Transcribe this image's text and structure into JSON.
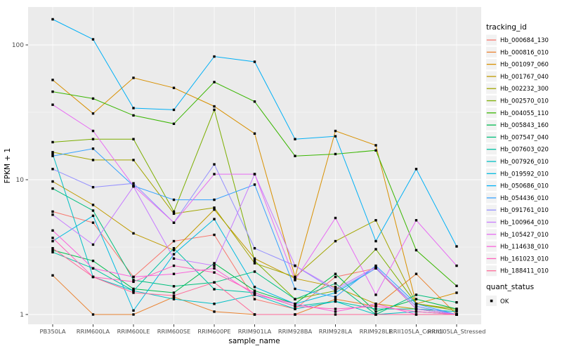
{
  "chart_data": {
    "type": "line",
    "title": "",
    "xlabel": "sample_name",
    "ylabel": "FPKM + 1",
    "scale": "log10",
    "y_ticks": [
      1,
      10,
      100
    ],
    "y_minor": [
      3.162,
      31.62
    ],
    "ylim": [
      1,
      190
    ],
    "grid": "white major and minor gridlines on gray panel",
    "panel_bg": "#EBEBEB",
    "tick_label_color": "#4D4D4D",
    "marker": "small black square",
    "categories": [
      "PB350LA",
      "RRIM600LA",
      "RRIM600LE",
      "RRIM600SE",
      "RRIM600PE",
      "RRIM901LA",
      "RRIM928BA",
      "RRIM928LA",
      "RRIM928LE",
      "RRII105LA_Control",
      "RRII105LA_Stressed"
    ],
    "legend": {
      "title": "tracking_id",
      "position": "right"
    },
    "quant_legend": {
      "title": "quant_status",
      "items": [
        "OK"
      ]
    },
    "series": [
      {
        "name": "Hb_000684_130",
        "color": "#F8766D",
        "values": [
          5.8,
          4.8,
          1.9,
          3.5,
          3.9,
          1.3,
          1.1,
          1.9,
          2.2,
          1.1,
          1.0
        ]
      },
      {
        "name": "Hb_000816_010",
        "color": "#EA8331",
        "values": [
          1.95,
          1.0,
          1.0,
          1.35,
          1.05,
          1.0,
          1.0,
          1.3,
          1.15,
          2.0,
          1.0
        ]
      },
      {
        "name": "Hb_001097_060",
        "color": "#D89000",
        "values": [
          55,
          31,
          57,
          48,
          35,
          22,
          1.9,
          23,
          18,
          1.2,
          1.45
        ]
      },
      {
        "name": "Hb_001767_040",
        "color": "#C09B00",
        "values": [
          9.7,
          6.5,
          4.0,
          3.0,
          6.0,
          2.6,
          1.85,
          1.6,
          1.2,
          1.1,
          1.0
        ]
      },
      {
        "name": "Hb_002232_300",
        "color": "#A3A500",
        "values": [
          16,
          14,
          14,
          5.6,
          6.2,
          2.4,
          1.9,
          3.5,
          5.0,
          1.2,
          1.1
        ]
      },
      {
        "name": "Hb_002570_010",
        "color": "#7CAE00",
        "values": [
          19,
          20,
          20,
          5.8,
          33,
          2.5,
          1.3,
          1.5,
          3.05,
          1.2,
          1.07
        ]
      },
      {
        "name": "Hb_004055_110",
        "color": "#39B600",
        "values": [
          45,
          40,
          30,
          26,
          53,
          38,
          15,
          15.5,
          16.5,
          3.0,
          1.63
        ]
      },
      {
        "name": "Hb_005843_160",
        "color": "#00BB4E",
        "values": [
          3.0,
          2.5,
          1.55,
          1.45,
          2.4,
          1.5,
          1.2,
          2.0,
          1.05,
          1.3,
          1.1
        ]
      },
      {
        "name": "Hb_007547_040",
        "color": "#00BF7D",
        "values": [
          8.6,
          5.9,
          1.8,
          1.62,
          1.73,
          2.08,
          1.3,
          1.7,
          1.0,
          1.4,
          1.23
        ]
      },
      {
        "name": "Hb_007603_020",
        "color": "#00C1A3",
        "values": [
          2.9,
          2.2,
          1.5,
          3.1,
          1.54,
          1.45,
          1.15,
          1.25,
          1.1,
          1.1,
          1.05
        ]
      },
      {
        "name": "Hb_007926_010",
        "color": "#00BFC4",
        "values": [
          15.5,
          1.9,
          1.5,
          1.3,
          1.2,
          1.4,
          1.1,
          1.25,
          1.0,
          1.05,
          1.0
        ]
      },
      {
        "name": "Hb_019592_010",
        "color": "#00BAE0",
        "values": [
          3.5,
          5.4,
          1.07,
          2.8,
          5.1,
          1.6,
          1.2,
          1.45,
          2.2,
          1.15,
          1.0
        ]
      },
      {
        "name": "Hb_050686_010",
        "color": "#00B0F6",
        "values": [
          155,
          110,
          34,
          33,
          82,
          75,
          20,
          21,
          3.5,
          12,
          3.2
        ]
      },
      {
        "name": "Hb_054436_010",
        "color": "#35A2FF",
        "values": [
          15,
          17,
          9.0,
          7.1,
          7.1,
          9.2,
          1.55,
          1.35,
          2.3,
          1.2,
          1.0
        ]
      },
      {
        "name": "Hb_091761_010",
        "color": "#9590FF",
        "values": [
          12,
          8.8,
          9.4,
          4.8,
          13,
          3.1,
          2.3,
          1.5,
          2.2,
          1.15,
          1.0
        ]
      },
      {
        "name": "Hb_100964_010",
        "color": "#C77CFF",
        "values": [
          5.5,
          3.3,
          8.9,
          2.6,
          2.3,
          11,
          2.3,
          1.55,
          2.25,
          1.1,
          1.0
        ]
      },
      {
        "name": "Hb_105427_010",
        "color": "#E76BF3",
        "values": [
          36,
          23,
          9.0,
          4.8,
          11,
          11,
          1.8,
          5.2,
          1.4,
          5.0,
          2.3
        ]
      },
      {
        "name": "Hb_114638_010",
        "color": "#FA62DB",
        "values": [
          4.2,
          2.2,
          1.9,
          2.0,
          2.2,
          1.4,
          1.2,
          1.05,
          1.2,
          1.0,
          1.0
        ]
      },
      {
        "name": "Hb_161023_010",
        "color": "#FF62BC",
        "values": [
          3.7,
          1.9,
          1.75,
          2.3,
          2.05,
          1.45,
          1.15,
          1.1,
          1.15,
          1.05,
          1.0
        ]
      },
      {
        "name": "Hb_188411_010",
        "color": "#FF6A98",
        "values": [
          3.1,
          1.9,
          1.45,
          1.38,
          1.73,
          1.0,
          1.0,
          1.0,
          1.0,
          1.0,
          1.0
        ]
      }
    ]
  }
}
